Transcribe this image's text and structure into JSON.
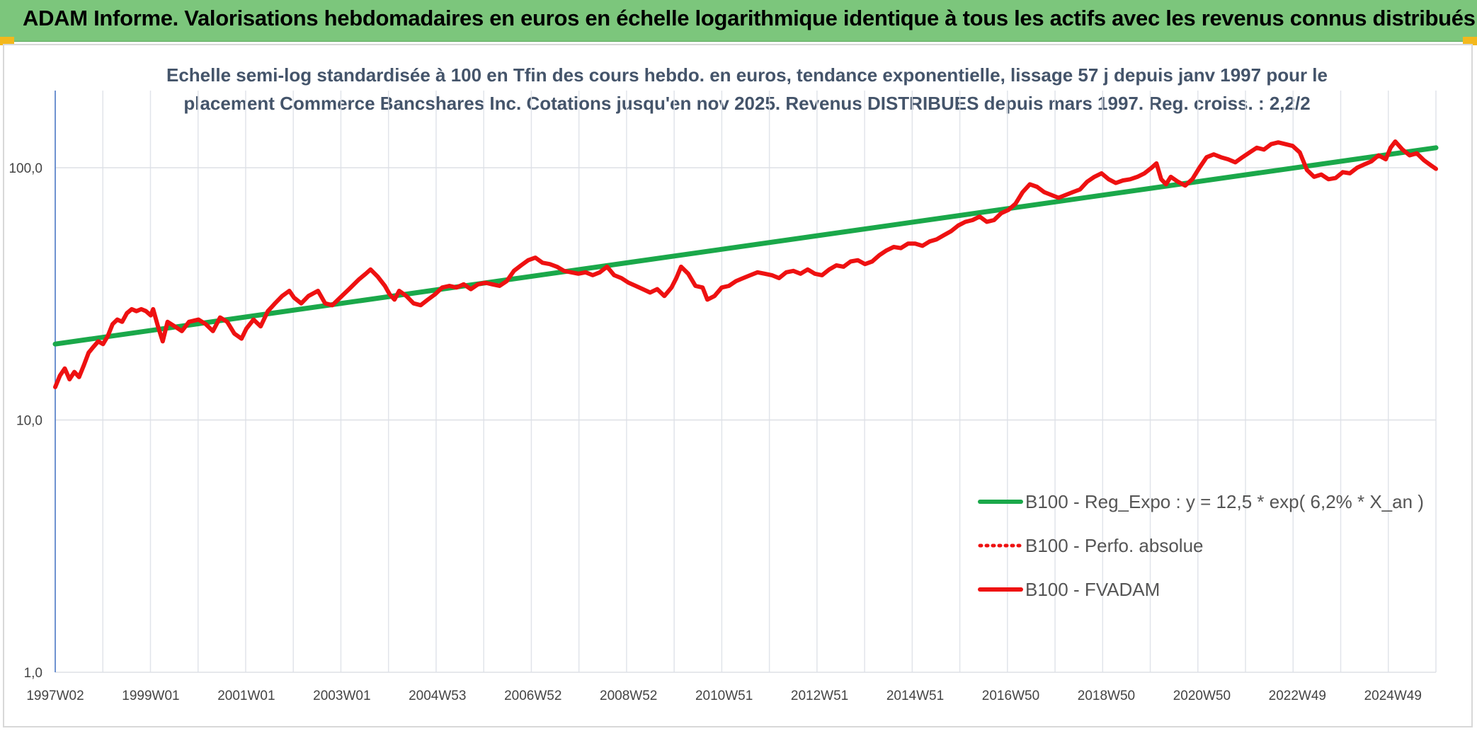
{
  "header": {
    "title": "ADAM Informe. Valorisations hebdomadaires en euros en échelle logarithmique identique à tous les actifs avec les revenus connus distribués"
  },
  "chart_data": {
    "type": "line",
    "title_line1": "Echelle semi-log standardisée à 100 en Tfin des cours hebdo. en euros, tendance exponentielle, lissage 57 j depuis janv 1997 pour le",
    "title_line2": "placement Commerce Bancshares Inc. Cotations jusqu'en nov 2025. Revenus DISTRIBUES depuis mars 1997. Reg. croiss. : 2,2/2",
    "yscale": "log",
    "ylim": [
      1,
      180
    ],
    "xlim": [
      1997.0,
      2025.9
    ],
    "y_ticks": [
      {
        "value": 1,
        "label": "1,0"
      },
      {
        "value": 10,
        "label": "10,0"
      },
      {
        "value": 100,
        "label": "100,0"
      }
    ],
    "x_ticks": [
      {
        "value": 1997.0,
        "label": "1997W02"
      },
      {
        "value": 1999.0,
        "label": "1999W01"
      },
      {
        "value": 2001.0,
        "label": "2001W01"
      },
      {
        "value": 2003.0,
        "label": "2003W01"
      },
      {
        "value": 2005.0,
        "label": "2004W53"
      },
      {
        "value": 2007.0,
        "label": "2006W52"
      },
      {
        "value": 2009.0,
        "label": "2008W52"
      },
      {
        "value": 2011.0,
        "label": "2010W51"
      },
      {
        "value": 2013.0,
        "label": "2012W51"
      },
      {
        "value": 2015.0,
        "label": "2014W51"
      },
      {
        "value": 2017.0,
        "label": "2016W50"
      },
      {
        "value": 2019.0,
        "label": "2018W50"
      },
      {
        "value": 2021.0,
        "label": "2020W50"
      },
      {
        "value": 2023.0,
        "label": "2022W49"
      },
      {
        "value": 2025.0,
        "label": "2024W49"
      }
    ],
    "grid": "vertical-and-horizontal",
    "legend_position": "bottom-right",
    "series": [
      {
        "name": "B100 - Reg_Expo : y = 12,5 * exp( 6,2% *  X_an )",
        "color": "#1aa84a",
        "style": "solid",
        "points": [
          [
            1997.0,
            20.0
          ],
          [
            2025.9,
            120.0
          ]
        ]
      },
      {
        "name": "B100 - Perfo. absolue",
        "color": "#ee1111",
        "style": "dotted",
        "points": []
      },
      {
        "name": "B100 - FVADAM",
        "color": "#ee1111",
        "style": "solid",
        "points": [
          [
            1997.0,
            13.5
          ],
          [
            1997.1,
            15.0
          ],
          [
            1997.2,
            16.0
          ],
          [
            1997.3,
            14.5
          ],
          [
            1997.4,
            15.5
          ],
          [
            1997.5,
            14.8
          ],
          [
            1997.6,
            16.5
          ],
          [
            1997.7,
            18.5
          ],
          [
            1997.8,
            19.5
          ],
          [
            1997.9,
            20.5
          ],
          [
            1998.0,
            20.0
          ],
          [
            1998.1,
            21.5
          ],
          [
            1998.2,
            24.0
          ],
          [
            1998.3,
            25.0
          ],
          [
            1998.4,
            24.5
          ],
          [
            1998.5,
            26.5
          ],
          [
            1998.6,
            27.5
          ],
          [
            1998.7,
            27.0
          ],
          [
            1998.8,
            27.5
          ],
          [
            1998.9,
            27.0
          ],
          [
            1999.0,
            26.0
          ],
          [
            1999.05,
            27.5
          ],
          [
            1999.15,
            23.5
          ],
          [
            1999.25,
            20.5
          ],
          [
            1999.35,
            24.5
          ],
          [
            1999.5,
            23.5
          ],
          [
            1999.65,
            22.5
          ],
          [
            1999.8,
            24.5
          ],
          [
            2000.0,
            25.0
          ],
          [
            2000.15,
            24.0
          ],
          [
            2000.3,
            22.5
          ],
          [
            2000.45,
            25.5
          ],
          [
            2000.6,
            24.5
          ],
          [
            2000.75,
            22.0
          ],
          [
            2000.9,
            21.0
          ],
          [
            2001.0,
            23.0
          ],
          [
            2001.15,
            25.0
          ],
          [
            2001.3,
            23.5
          ],
          [
            2001.45,
            27.0
          ],
          [
            2001.6,
            29.0
          ],
          [
            2001.75,
            31.0
          ],
          [
            2001.9,
            32.5
          ],
          [
            2002.0,
            30.5
          ],
          [
            2002.15,
            29.0
          ],
          [
            2002.3,
            31.0
          ],
          [
            2002.5,
            32.5
          ],
          [
            2002.65,
            29.0
          ],
          [
            2002.8,
            28.5
          ],
          [
            2003.0,
            31.0
          ],
          [
            2003.15,
            33.0
          ],
          [
            2003.35,
            36.0
          ],
          [
            2003.5,
            38.0
          ],
          [
            2003.6,
            39.5
          ],
          [
            2003.75,
            37.0
          ],
          [
            2003.9,
            34.0
          ],
          [
            2004.0,
            31.5
          ],
          [
            2004.1,
            30.0
          ],
          [
            2004.2,
            32.5
          ],
          [
            2004.35,
            31.0
          ],
          [
            2004.5,
            29.0
          ],
          [
            2004.65,
            28.5
          ],
          [
            2004.8,
            30.0
          ],
          [
            2004.95,
            31.5
          ],
          [
            2005.1,
            33.5
          ],
          [
            2005.25,
            34.0
          ],
          [
            2005.4,
            33.5
          ],
          [
            2005.55,
            34.5
          ],
          [
            2005.7,
            33.0
          ],
          [
            2005.85,
            34.5
          ],
          [
            2006.0,
            35.0
          ],
          [
            2006.15,
            34.5
          ],
          [
            2006.3,
            34.0
          ],
          [
            2006.45,
            35.5
          ],
          [
            2006.6,
            39.0
          ],
          [
            2006.75,
            41.0
          ],
          [
            2006.9,
            43.0
          ],
          [
            2007.05,
            44.0
          ],
          [
            2007.2,
            42.0
          ],
          [
            2007.35,
            41.5
          ],
          [
            2007.5,
            40.5
          ],
          [
            2007.65,
            39.0
          ],
          [
            2007.8,
            38.5
          ],
          [
            2007.95,
            38.0
          ],
          [
            2008.1,
            38.5
          ],
          [
            2008.25,
            37.5
          ],
          [
            2008.4,
            38.5
          ],
          [
            2008.55,
            40.5
          ],
          [
            2008.7,
            37.5
          ],
          [
            2008.85,
            36.5
          ],
          [
            2009.0,
            35.0
          ],
          [
            2009.15,
            34.0
          ],
          [
            2009.3,
            33.0
          ],
          [
            2009.45,
            32.0
          ],
          [
            2009.6,
            33.0
          ],
          [
            2009.75,
            31.0
          ],
          [
            2009.9,
            33.5
          ],
          [
            2010.0,
            36.5
          ],
          [
            2010.1,
            40.5
          ],
          [
            2010.25,
            38.0
          ],
          [
            2010.4,
            34.0
          ],
          [
            2010.55,
            33.5
          ],
          [
            2010.65,
            30.0
          ],
          [
            2010.8,
            31.0
          ],
          [
            2010.95,
            33.5
          ],
          [
            2011.1,
            34.0
          ],
          [
            2011.25,
            35.5
          ],
          [
            2011.4,
            36.5
          ],
          [
            2011.55,
            37.5
          ],
          [
            2011.7,
            38.5
          ],
          [
            2011.85,
            38.0
          ],
          [
            2012.0,
            37.5
          ],
          [
            2012.15,
            36.5
          ],
          [
            2012.3,
            38.5
          ],
          [
            2012.45,
            39.0
          ],
          [
            2012.6,
            38.0
          ],
          [
            2012.75,
            39.5
          ],
          [
            2012.9,
            38.0
          ],
          [
            2013.05,
            37.5
          ],
          [
            2013.2,
            39.5
          ],
          [
            2013.35,
            41.0
          ],
          [
            2013.5,
            40.5
          ],
          [
            2013.65,
            42.5
          ],
          [
            2013.8,
            43.0
          ],
          [
            2013.95,
            41.5
          ],
          [
            2014.1,
            42.5
          ],
          [
            2014.25,
            45.0
          ],
          [
            2014.4,
            47.0
          ],
          [
            2014.55,
            48.5
          ],
          [
            2014.7,
            48.0
          ],
          [
            2014.85,
            50.0
          ],
          [
            2015.0,
            50.0
          ],
          [
            2015.15,
            49.0
          ],
          [
            2015.3,
            51.0
          ],
          [
            2015.45,
            52.0
          ],
          [
            2015.6,
            54.0
          ],
          [
            2015.75,
            56.0
          ],
          [
            2015.9,
            59.0
          ],
          [
            2016.05,
            61.0
          ],
          [
            2016.2,
            62.0
          ],
          [
            2016.35,
            64.0
          ],
          [
            2016.5,
            61.0
          ],
          [
            2016.65,
            62.0
          ],
          [
            2016.8,
            66.0
          ],
          [
            2016.95,
            68.0
          ],
          [
            2017.1,
            72.0
          ],
          [
            2017.25,
            80.0
          ],
          [
            2017.4,
            86.0
          ],
          [
            2017.55,
            84.0
          ],
          [
            2017.7,
            80.0
          ],
          [
            2017.85,
            78.0
          ],
          [
            2018.0,
            76.0
          ],
          [
            2018.15,
            78.0
          ],
          [
            2018.3,
            80.0
          ],
          [
            2018.45,
            82.0
          ],
          [
            2018.6,
            88.0
          ],
          [
            2018.75,
            92.0
          ],
          [
            2018.9,
            95.0
          ],
          [
            2019.05,
            90.0
          ],
          [
            2019.2,
            87.0
          ],
          [
            2019.35,
            89.0
          ],
          [
            2019.5,
            90.0
          ],
          [
            2019.65,
            92.0
          ],
          [
            2019.8,
            95.0
          ],
          [
            2019.95,
            100.0
          ],
          [
            2020.05,
            104.0
          ],
          [
            2020.15,
            90.0
          ],
          [
            2020.25,
            86.0
          ],
          [
            2020.35,
            92.0
          ],
          [
            2020.5,
            88.0
          ],
          [
            2020.65,
            85.0
          ],
          [
            2020.8,
            90.0
          ],
          [
            2020.95,
            100.0
          ],
          [
            2021.1,
            110.0
          ],
          [
            2021.25,
            113.0
          ],
          [
            2021.4,
            110.0
          ],
          [
            2021.55,
            108.0
          ],
          [
            2021.7,
            105.0
          ],
          [
            2021.85,
            110.0
          ],
          [
            2022.0,
            115.0
          ],
          [
            2022.15,
            120.0
          ],
          [
            2022.3,
            118.0
          ],
          [
            2022.45,
            124.0
          ],
          [
            2022.6,
            126.0
          ],
          [
            2022.75,
            124.0
          ],
          [
            2022.9,
            122.0
          ],
          [
            2023.05,
            115.0
          ],
          [
            2023.2,
            98.0
          ],
          [
            2023.35,
            92.0
          ],
          [
            2023.5,
            94.0
          ],
          [
            2023.65,
            90.0
          ],
          [
            2023.8,
            91.0
          ],
          [
            2023.95,
            96.0
          ],
          [
            2024.1,
            95.0
          ],
          [
            2024.25,
            100.0
          ],
          [
            2024.4,
            103.0
          ],
          [
            2024.55,
            106.0
          ],
          [
            2024.7,
            112.0
          ],
          [
            2024.85,
            108.0
          ],
          [
            2024.95,
            120.0
          ],
          [
            2025.05,
            127.0
          ],
          [
            2025.2,
            118.0
          ],
          [
            2025.35,
            112.0
          ],
          [
            2025.5,
            114.0
          ],
          [
            2025.65,
            107.0
          ],
          [
            2025.8,
            102.0
          ],
          [
            2025.9,
            99.0
          ]
        ]
      }
    ]
  }
}
